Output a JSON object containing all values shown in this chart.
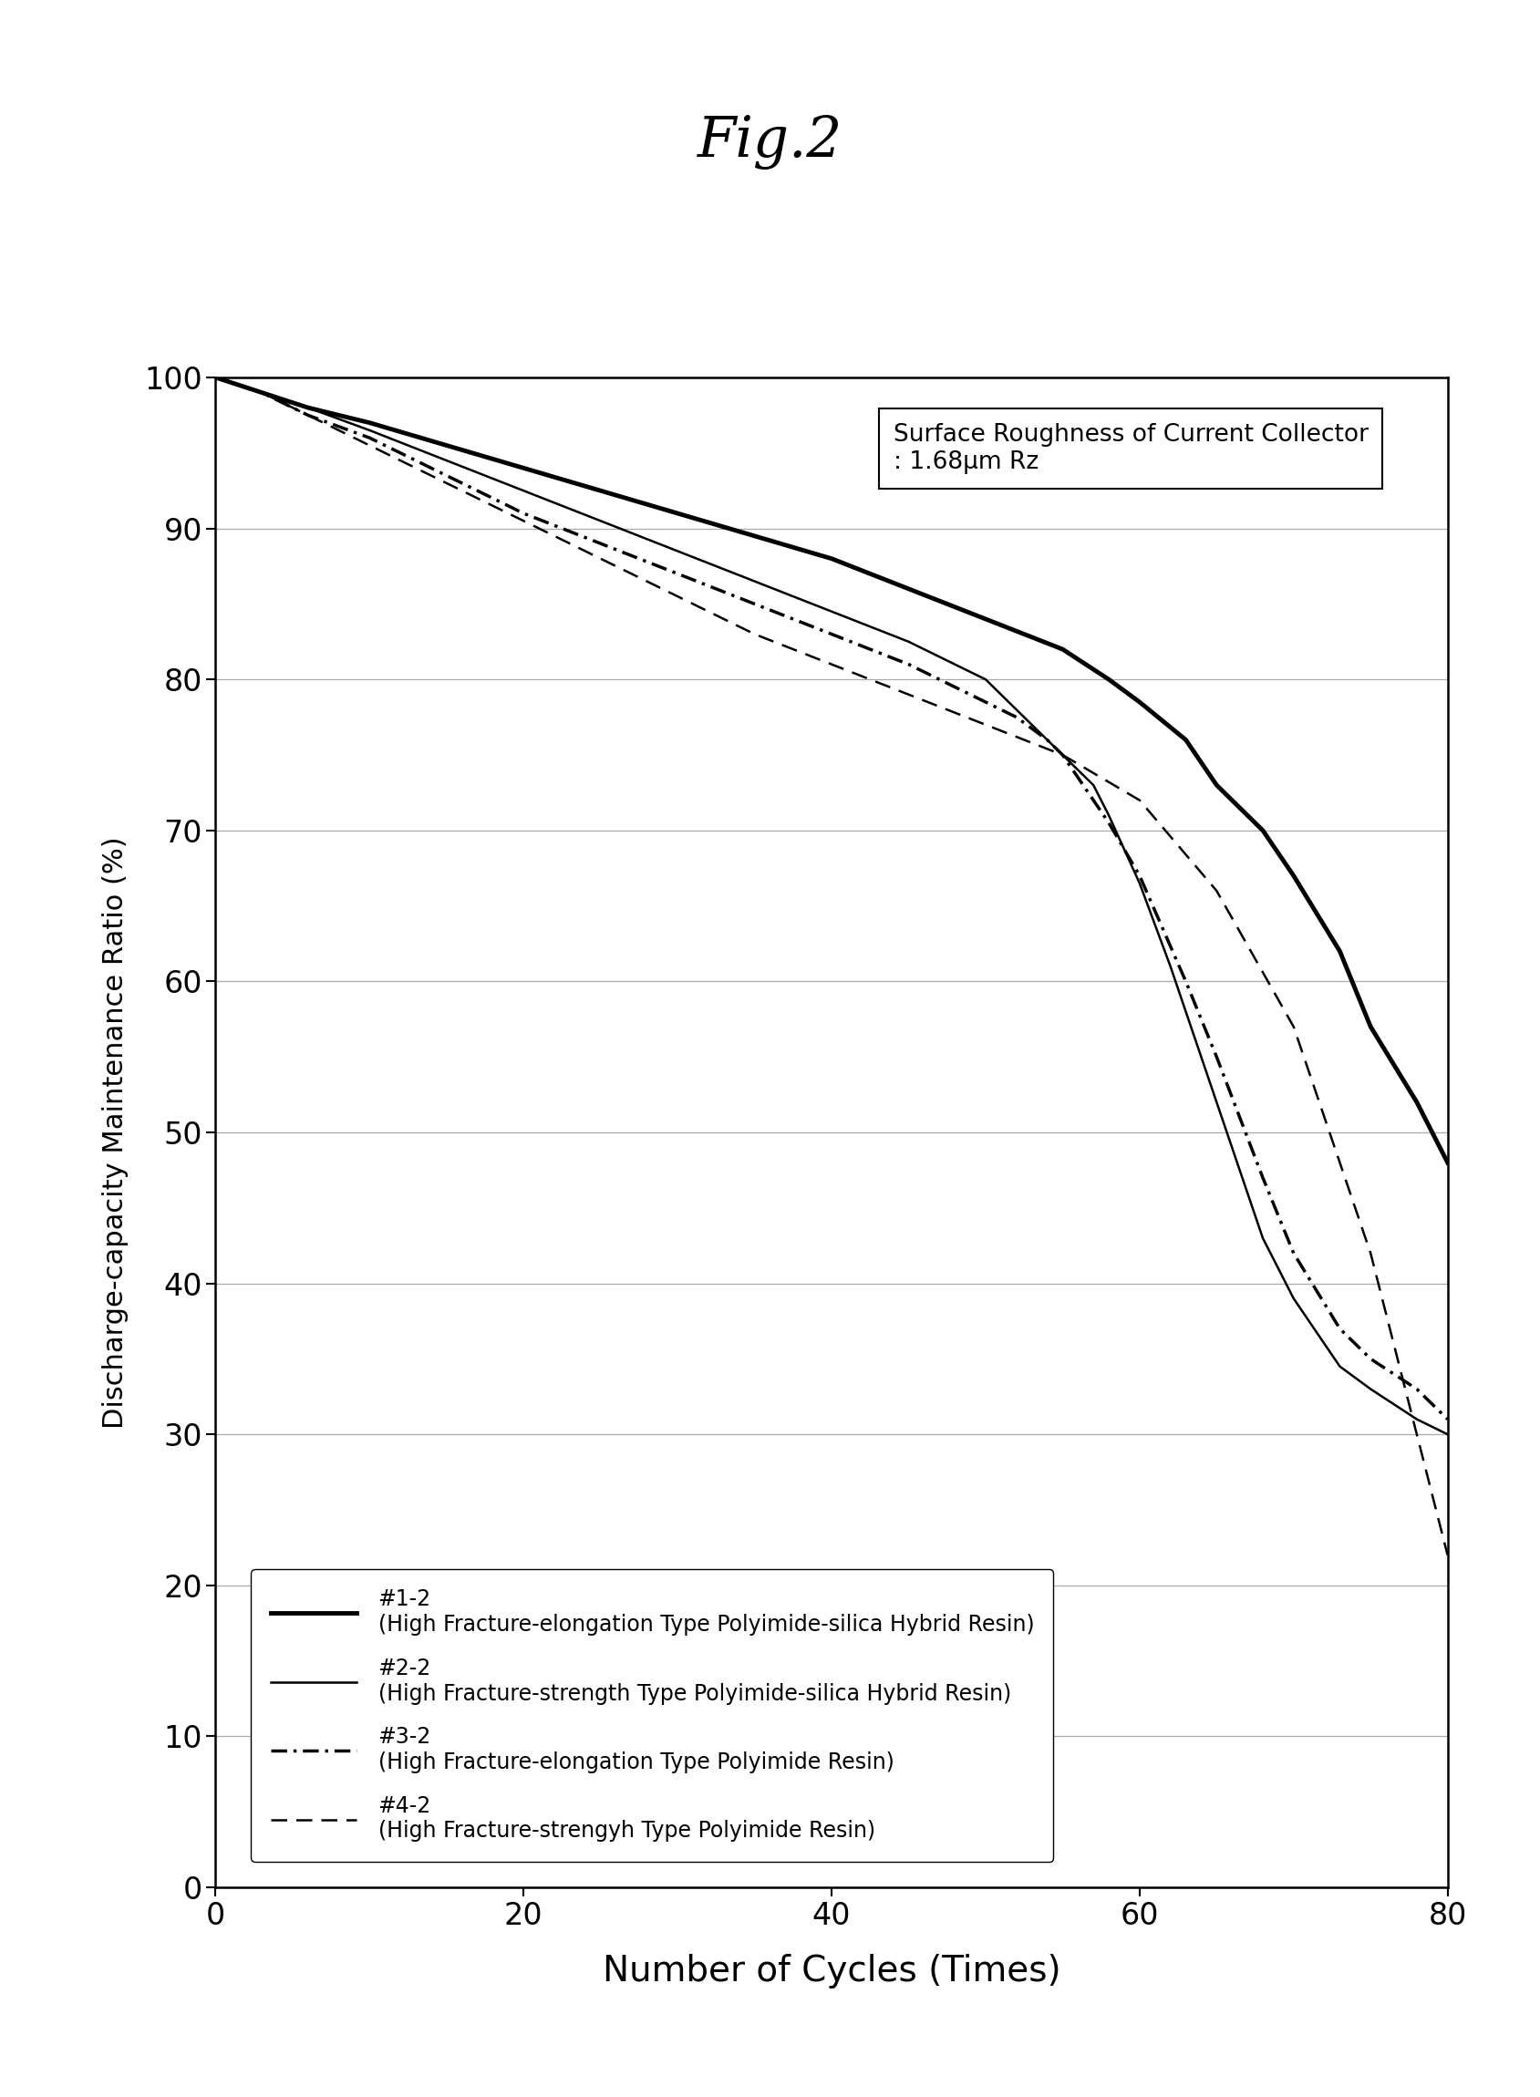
{
  "title": "Fig.2",
  "xlabel": "Number of Cycles (Times)",
  "ylabel": "Discharge-capacity Maintenance Ratio (%)",
  "xlim": [
    0,
    80
  ],
  "ylim": [
    0,
    100
  ],
  "xticks": [
    0,
    20,
    40,
    60,
    80
  ],
  "yticks": [
    0,
    10,
    20,
    30,
    40,
    50,
    60,
    70,
    80,
    90,
    100
  ],
  "annotation_line1": "Surface Roughness of Current Collector",
  "annotation_line2": ": 1.68μm Rz",
  "series": {
    "s1": {
      "label1": "#1-2",
      "label2": "(High Fracture-elongation Type Polyimide-silica Hybrid Resin)",
      "color": "#000000",
      "linewidth": 3.5,
      "linestyle": "solid",
      "x": [
        0,
        3,
        6,
        10,
        15,
        20,
        25,
        30,
        35,
        40,
        45,
        50,
        55,
        58,
        60,
        63,
        65,
        68,
        70,
        73,
        75,
        78,
        80
      ],
      "y": [
        100,
        99,
        98,
        97,
        95.5,
        94,
        92.5,
        91,
        89.5,
        88,
        86,
        84,
        82,
        80,
        78.5,
        76,
        73,
        70,
        67,
        62,
        57,
        52,
        48
      ]
    },
    "s2": {
      "label1": "#2-2",
      "label2": "(High Fracture-strength Type Polyimide-silica Hybrid Resin)",
      "color": "#000000",
      "linewidth": 1.8,
      "linestyle": "solid",
      "x": [
        0,
        3,
        6,
        10,
        15,
        20,
        25,
        30,
        35,
        40,
        45,
        50,
        52,
        54,
        56,
        57,
        58,
        60,
        62,
        65,
        68,
        70,
        73,
        75,
        78,
        80
      ],
      "y": [
        100,
        99,
        98,
        96.5,
        94.5,
        92.5,
        90.5,
        88.5,
        86.5,
        84.5,
        82.5,
        80,
        78,
        76,
        74,
        73,
        71,
        66.5,
        61,
        52,
        43,
        39,
        34.5,
        33,
        31,
        30
      ]
    },
    "s3": {
      "label1": "#3-2",
      "label2": "(High Fracture-elongation Type Polyimide Resin)",
      "color": "#000000",
      "linewidth": 2.5,
      "linestyle": "dashdot",
      "x": [
        0,
        3,
        6,
        10,
        15,
        20,
        25,
        30,
        35,
        40,
        45,
        48,
        50,
        52,
        54,
        55,
        56,
        58,
        60,
        63,
        65,
        68,
        70,
        73,
        75,
        78,
        80
      ],
      "y": [
        100,
        99,
        97.5,
        96,
        93.5,
        91,
        89,
        87,
        85,
        83,
        81,
        79.5,
        78.5,
        77.5,
        76,
        75,
        73.5,
        70.5,
        67,
        60,
        55,
        47,
        42,
        37,
        35,
        33,
        31
      ]
    },
    "s4": {
      "label1": "#4-2",
      "label2": "(High Fracture-strengyh Type Polyimide Resin)",
      "color": "#000000",
      "linewidth": 1.8,
      "linestyle": "dashed",
      "x": [
        0,
        3,
        6,
        10,
        15,
        20,
        25,
        30,
        35,
        40,
        45,
        50,
        55,
        60,
        65,
        70,
        75,
        80
      ],
      "y": [
        100,
        99,
        97.5,
        95.5,
        93,
        90.5,
        88,
        85.5,
        83,
        81,
        79,
        77,
        75,
        72,
        66,
        57,
        42,
        22
      ]
    }
  },
  "background_color": "#ffffff",
  "grid_color": "#aaaaaa"
}
